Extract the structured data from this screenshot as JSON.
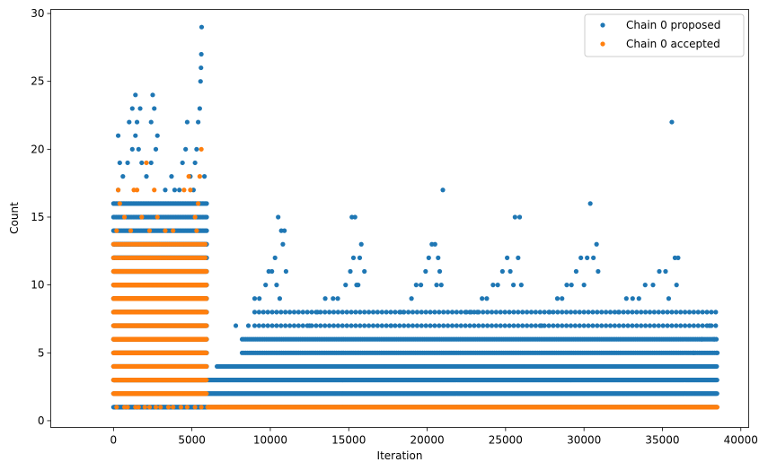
{
  "chart_data": {
    "type": "scatter",
    "xlabel": "Iteration",
    "ylabel": "Count",
    "xlim": [
      -4000,
      40500
    ],
    "ylim": [
      -0.5,
      30.3
    ],
    "xticks": [
      0,
      5000,
      10000,
      15000,
      20000,
      25000,
      30000,
      35000,
      40000
    ],
    "yticks": [
      0,
      5,
      10,
      15,
      20,
      25,
      30
    ],
    "grid": false,
    "legend_position": "top-right",
    "series": [
      {
        "name": "Chain 0 proposed",
        "color": "#1f77b4",
        "bands": [
          {
            "x0": 0,
            "x1": 5950,
            "y0": 1,
            "y1": 13,
            "step": 30
          },
          {
            "x0": 0,
            "x1": 5950,
            "y0": 14,
            "y1": 16,
            "step": 90
          },
          {
            "x0": 6000,
            "x1": 38500,
            "y0": 1,
            "y1": 3,
            "step": 40
          },
          {
            "x0": 6600,
            "x1": 38500,
            "y0": 4,
            "y1": 4,
            "step": 60
          },
          {
            "x0": 8200,
            "x1": 38500,
            "y0": 5,
            "y1": 6,
            "step": 120
          },
          {
            "x0": 9000,
            "x1": 38500,
            "y0": 7,
            "y1": 8,
            "step": 280
          }
        ],
        "points": [
          [
            300,
            17
          ],
          [
            600,
            18
          ],
          [
            900,
            19
          ],
          [
            1200,
            20
          ],
          [
            1400,
            21
          ],
          [
            1600,
            20
          ],
          [
            1800,
            19
          ],
          [
            2100,
            18
          ],
          [
            2400,
            19
          ],
          [
            2700,
            20
          ],
          [
            300,
            21
          ],
          [
            400,
            19
          ],
          [
            1000,
            22
          ],
          [
            1200,
            23
          ],
          [
            1400,
            24
          ],
          [
            1500,
            22
          ],
          [
            1700,
            23
          ],
          [
            2500,
            24
          ],
          [
            2600,
            23
          ],
          [
            2400,
            22
          ],
          [
            2800,
            21
          ],
          [
            4200,
            17
          ],
          [
            4400,
            19
          ],
          [
            4600,
            20
          ],
          [
            4700,
            22
          ],
          [
            4900,
            18
          ],
          [
            5200,
            19
          ],
          [
            5300,
            20
          ],
          [
            5400,
            22
          ],
          [
            5500,
            23
          ],
          [
            5550,
            25
          ],
          [
            5580,
            26
          ],
          [
            5600,
            27
          ],
          [
            5620,
            29
          ],
          [
            5800,
            18
          ],
          [
            3300,
            17
          ],
          [
            3700,
            18
          ],
          [
            3900,
            17
          ],
          [
            5100,
            17
          ],
          [
            7800,
            7
          ],
          [
            8600,
            7
          ],
          [
            9000,
            9
          ],
          [
            9300,
            9
          ],
          [
            9700,
            10
          ],
          [
            9900,
            11
          ],
          [
            10100,
            11
          ],
          [
            10300,
            12
          ],
          [
            10500,
            15
          ],
          [
            10700,
            14
          ],
          [
            10800,
            13
          ],
          [
            10900,
            14
          ],
          [
            11000,
            11
          ],
          [
            10400,
            10
          ],
          [
            10600,
            9
          ],
          [
            12500,
            7
          ],
          [
            13000,
            8
          ],
          [
            13500,
            9
          ],
          [
            14000,
            9
          ],
          [
            14300,
            9
          ],
          [
            14800,
            10
          ],
          [
            15100,
            11
          ],
          [
            15300,
            12
          ],
          [
            15200,
            15
          ],
          [
            15400,
            15
          ],
          [
            15600,
            10
          ],
          [
            15800,
            13
          ],
          [
            15700,
            12
          ],
          [
            16000,
            11
          ],
          [
            15500,
            10
          ],
          [
            17700,
            7
          ],
          [
            18300,
            8
          ],
          [
            18500,
            8
          ],
          [
            19000,
            9
          ],
          [
            19300,
            10
          ],
          [
            19600,
            10
          ],
          [
            19900,
            11
          ],
          [
            20100,
            12
          ],
          [
            20300,
            13
          ],
          [
            20500,
            13
          ],
          [
            20700,
            12
          ],
          [
            20800,
            11
          ],
          [
            20900,
            10
          ],
          [
            21000,
            17
          ],
          [
            20600,
            10
          ],
          [
            22500,
            8
          ],
          [
            22800,
            8
          ],
          [
            23200,
            8
          ],
          [
            23500,
            9
          ],
          [
            23800,
            9
          ],
          [
            24200,
            10
          ],
          [
            24500,
            10
          ],
          [
            24800,
            11
          ],
          [
            25100,
            12
          ],
          [
            25300,
            11
          ],
          [
            25600,
            15
          ],
          [
            25800,
            12
          ],
          [
            25900,
            15
          ],
          [
            26000,
            10
          ],
          [
            25500,
            10
          ],
          [
            27300,
            7
          ],
          [
            27800,
            8
          ],
          [
            28300,
            9
          ],
          [
            28600,
            9
          ],
          [
            28900,
            10
          ],
          [
            29200,
            10
          ],
          [
            29500,
            11
          ],
          [
            29800,
            12
          ],
          [
            30200,
            12
          ],
          [
            30400,
            16
          ],
          [
            30600,
            12
          ],
          [
            30800,
            13
          ],
          [
            30900,
            11
          ],
          [
            30000,
            10
          ],
          [
            32200,
            8
          ],
          [
            32700,
            9
          ],
          [
            33100,
            9
          ],
          [
            33500,
            9
          ],
          [
            33900,
            10
          ],
          [
            34400,
            10
          ],
          [
            34800,
            11
          ],
          [
            35200,
            11
          ],
          [
            35600,
            22
          ],
          [
            35800,
            12
          ],
          [
            35900,
            10
          ],
          [
            36000,
            12
          ],
          [
            35400,
            9
          ],
          [
            37000,
            5
          ],
          [
            37500,
            6
          ],
          [
            38000,
            7
          ],
          [
            38300,
            6
          ],
          [
            38500,
            5
          ]
        ]
      },
      {
        "name": "Chain 0 accepted",
        "color": "#ff7f0e",
        "bands": [
          {
            "x0": 0,
            "x1": 5950,
            "y0": 2,
            "y1": 11,
            "step": 26
          },
          {
            "x0": 0,
            "x1": 5950,
            "y0": 12,
            "y1": 13,
            "step": 130
          },
          {
            "x0": 6000,
            "x1": 38500,
            "y0": 1,
            "y1": 1,
            "step": 30
          }
        ],
        "points": [
          [
            200,
            1
          ],
          [
            700,
            1
          ],
          [
            900,
            1
          ],
          [
            1400,
            1
          ],
          [
            1600,
            1
          ],
          [
            2000,
            1
          ],
          [
            2300,
            1
          ],
          [
            2700,
            1
          ],
          [
            3000,
            1
          ],
          [
            3500,
            1
          ],
          [
            3800,
            1
          ],
          [
            4300,
            1
          ],
          [
            4700,
            1
          ],
          [
            5200,
            1
          ],
          [
            5600,
            1
          ],
          [
            200,
            14
          ],
          [
            400,
            16
          ],
          [
            300,
            17
          ],
          [
            700,
            15
          ],
          [
            1100,
            14
          ],
          [
            1300,
            17
          ],
          [
            1500,
            17
          ],
          [
            1800,
            15
          ],
          [
            2100,
            19
          ],
          [
            2300,
            14
          ],
          [
            2600,
            17
          ],
          [
            2800,
            15
          ],
          [
            4500,
            17
          ],
          [
            4800,
            18
          ],
          [
            4900,
            17
          ],
          [
            5200,
            15
          ],
          [
            5400,
            16
          ],
          [
            5500,
            18
          ],
          [
            5600,
            20
          ],
          [
            5300,
            14
          ],
          [
            3300,
            14
          ],
          [
            3800,
            14
          ]
        ]
      }
    ]
  }
}
